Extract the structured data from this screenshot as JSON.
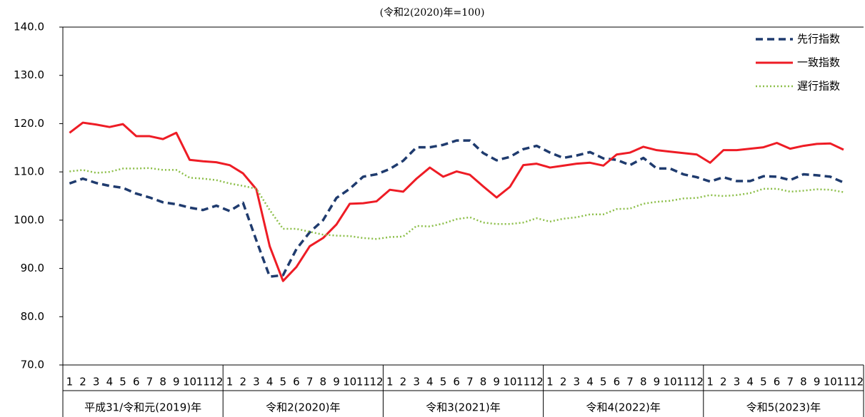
{
  "chart_data": {
    "type": "line",
    "subtitle": "(令和2(2020)年=100)",
    "categories": [
      "1",
      "2",
      "3",
      "4",
      "5",
      "6",
      "7",
      "8",
      "9",
      "10",
      "11",
      "12",
      "1",
      "2",
      "3",
      "4",
      "5",
      "6",
      "7",
      "8",
      "9",
      "10",
      "11",
      "12",
      "1",
      "2",
      "3",
      "4",
      "5",
      "6",
      "7",
      "8",
      "9",
      "10",
      "11",
      "12",
      "1",
      "2",
      "3",
      "4",
      "5",
      "6",
      "7",
      "8",
      "9",
      "10",
      "11",
      "12",
      "1",
      "2",
      "3",
      "4",
      "5",
      "6",
      "7",
      "8",
      "9",
      "10",
      "11",
      "12"
    ],
    "x_groups": [
      "平成31/令和元(2019)年",
      "令和2(2020)年",
      "令和3(2021)年",
      "令和4(2022)年",
      "令和5(2023)年"
    ],
    "ylim": [
      70,
      140
    ],
    "yticks": [
      {
        "value": 70,
        "label": "70.0"
      },
      {
        "value": 80,
        "label": "80.0"
      },
      {
        "value": 90,
        "label": "90.0"
      },
      {
        "value": 100,
        "label": "100.0"
      },
      {
        "value": 110,
        "label": "110.0"
      },
      {
        "value": 120,
        "label": "120.0"
      },
      {
        "value": 130,
        "label": "130.0"
      },
      {
        "value": 140,
        "label": "140.0"
      }
    ],
    "grid": false,
    "legend": "upper right",
    "series": [
      {
        "name": "先行指数",
        "color": "#1f3b6e",
        "style": "dashed",
        "values": [
          107.6,
          108.6,
          107.7,
          107.1,
          106.7,
          105.5,
          104.7,
          103.7,
          103.3,
          102.6,
          102.1,
          103.0,
          101.9,
          103.6,
          95.8,
          88.3,
          88.6,
          94.0,
          97.5,
          100.0,
          104.6,
          106.5,
          109.0,
          109.5,
          110.6,
          112.3,
          115.1,
          115.1,
          115.6,
          116.5,
          116.5,
          113.9,
          112.4,
          113.1,
          114.7,
          115.4,
          114.0,
          112.9,
          113.4,
          114.1,
          112.8,
          112.5,
          111.4,
          112.9,
          110.7,
          110.7,
          109.5,
          108.9,
          108.0,
          108.9,
          108.1,
          108.1,
          109.1,
          109.0,
          108.3,
          109.5,
          109.3,
          109.0,
          107.8,
          null
        ]
      },
      {
        "name": "一致指数",
        "color": "#ee1c25",
        "style": "solid",
        "values": [
          118.1,
          120.2,
          119.8,
          119.3,
          119.9,
          117.4,
          117.4,
          116.8,
          118.1,
          112.5,
          112.2,
          112.0,
          111.4,
          109.7,
          106.4,
          94.6,
          87.4,
          90.3,
          94.6,
          96.3,
          99.1,
          103.4,
          103.5,
          103.9,
          106.3,
          105.9,
          108.6,
          110.9,
          109.0,
          110.1,
          109.4,
          107.0,
          104.7,
          106.9,
          111.4,
          111.7,
          110.9,
          111.3,
          111.7,
          111.9,
          111.3,
          113.6,
          114.0,
          115.2,
          114.5,
          114.2,
          113.9,
          113.6,
          111.9,
          114.5,
          114.5,
          114.8,
          115.1,
          116.0,
          114.8,
          115.4,
          115.8,
          115.9,
          114.6,
          null
        ]
      },
      {
        "name": "遅行指数",
        "color": "#8dbf4a",
        "style": "dotted",
        "values": [
          110.1,
          110.4,
          109.8,
          110.0,
          110.7,
          110.7,
          110.8,
          110.4,
          110.4,
          108.8,
          108.6,
          108.3,
          107.6,
          107.1,
          106.5,
          102.1,
          98.2,
          98.2,
          97.6,
          97.0,
          96.8,
          96.7,
          96.3,
          96.1,
          96.5,
          96.6,
          98.8,
          98.7,
          99.3,
          100.2,
          100.6,
          99.5,
          99.2,
          99.2,
          99.5,
          100.4,
          99.7,
          100.3,
          100.6,
          101.2,
          101.2,
          102.3,
          102.4,
          103.4,
          103.8,
          104.0,
          104.5,
          104.6,
          105.2,
          105.0,
          105.2,
          105.6,
          106.5,
          106.5,
          105.9,
          106.1,
          106.4,
          106.3,
          105.8,
          null
        ]
      }
    ]
  }
}
